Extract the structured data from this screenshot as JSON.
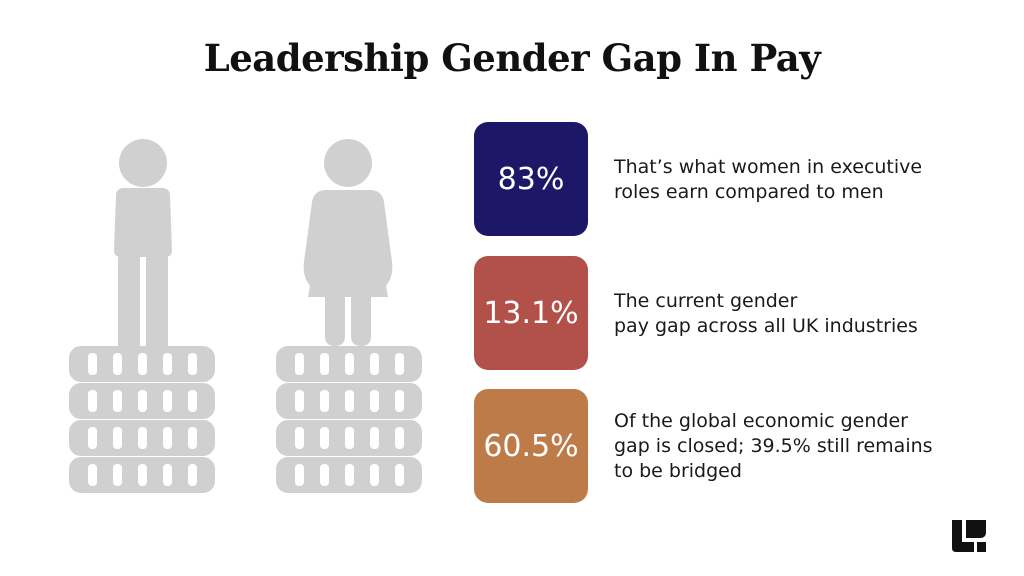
{
  "title": "Leadership Gender Gap In Pay",
  "colors": {
    "figure_gray": "#d0d0d0",
    "box_1": "#1c1766",
    "box_2": "#b2514a",
    "box_3": "#bd7b4a",
    "logo": "#111111"
  },
  "figures": [
    {
      "icon": "man-icon",
      "coin_stack_rows": 4,
      "coins_per_row": 5
    },
    {
      "icon": "woman-icon",
      "coin_stack_rows": 4,
      "coins_per_row": 5
    }
  ],
  "stats": [
    {
      "value": "83%",
      "lines": [
        "That’s what women in executive",
        "roles earn compared to men"
      ]
    },
    {
      "value": "13.1%",
      "lines": [
        "The current gender",
        "pay gap across all UK industries"
      ]
    },
    {
      "value": "60.5%",
      "lines": [
        "Of the global economic gender",
        "gap is closed; 39.5% still remains",
        "to be bridged"
      ]
    }
  ],
  "logo_icon": "brand-logo-icon"
}
